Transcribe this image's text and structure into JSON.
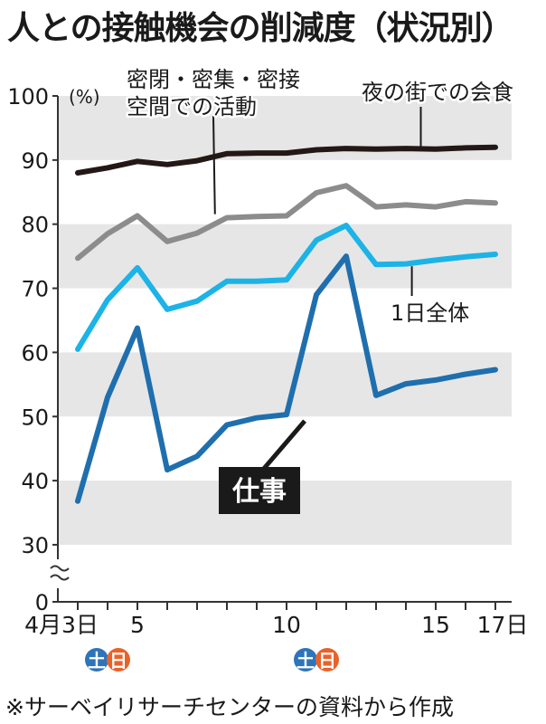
{
  "title": "人との接触機会の削減度（状況別）",
  "source": "※サーベイリサーチセンターの資料から作成",
  "colors": {
    "bg_band": "#e6e6e6",
    "night": "#231815",
    "closed": "#8c8c8c",
    "all_day": "#1cb3e6",
    "work": "#1f6fae",
    "saturday": "#2f74b9",
    "sunday": "#e9622a"
  },
  "chart_data": {
    "type": "line",
    "title": "人との接触機会の削減度（状況別）",
    "ylabel": "(%)",
    "ylim": [
      30,
      100
    ],
    "y_break": "0",
    "y_ticks": [
      "100",
      "90",
      "80",
      "70",
      "60",
      "50",
      "40",
      "30",
      "0"
    ],
    "x": [
      3,
      4,
      5,
      6,
      7,
      8,
      9,
      10,
      11,
      12,
      13,
      14,
      15,
      16,
      17
    ],
    "x_tick_labels": [
      {
        "x": 3,
        "label": "4月3日"
      },
      {
        "x": 5,
        "label": "5"
      },
      {
        "x": 10,
        "label": "10"
      },
      {
        "x": 15,
        "label": "15"
      },
      {
        "x": 17,
        "label": "17日"
      }
    ],
    "weekend_badges": [
      {
        "x": 4,
        "sat": "土",
        "sun": "日"
      },
      {
        "x": 11,
        "sat": "土",
        "sun": "日"
      }
    ],
    "series": [
      {
        "name": "夜の街での会食",
        "color_key": "night",
        "values": [
          88,
          88.8,
          89.8,
          89.3,
          89.9,
          91,
          91.1,
          91.1,
          91.6,
          91.8,
          91.7,
          91.8,
          91.7,
          91.9,
          92
        ]
      },
      {
        "name": "密閉・密集・密接空間での活動",
        "color_key": "closed",
        "values": [
          74.7,
          78.5,
          81.3,
          77.3,
          78.6,
          81,
          81.2,
          81.3,
          84.9,
          86,
          82.7,
          83,
          82.7,
          83.5,
          83.3
        ]
      },
      {
        "name": "1日全体",
        "color_key": "all_day",
        "values": [
          60.5,
          68.2,
          73.2,
          66.7,
          68,
          71.1,
          71.1,
          71.3,
          77.5,
          79.8,
          73.7,
          73.8,
          74.4,
          74.9,
          75.3
        ]
      },
      {
        "name": "仕事",
        "color_key": "work",
        "values": [
          36.8,
          53,
          63.8,
          41.7,
          43.8,
          48.7,
          49.8,
          50.3,
          69,
          75,
          53.3,
          55.1,
          55.7,
          56.6,
          57.3
        ]
      }
    ],
    "annotations": [
      {
        "text": "密閉・密集・密接空間での活動",
        "lines": [
          "密閉・密集・密接",
          "空間での活動"
        ],
        "target": [
          7.6,
          81
        ]
      },
      {
        "text": "夜の街での会食",
        "target": [
          14.5,
          91.6
        ]
      },
      {
        "text": "1日全体",
        "target": [
          14.2,
          74
        ]
      },
      {
        "text": "仕事",
        "target": [
          10.7,
          51
        ]
      }
    ]
  }
}
